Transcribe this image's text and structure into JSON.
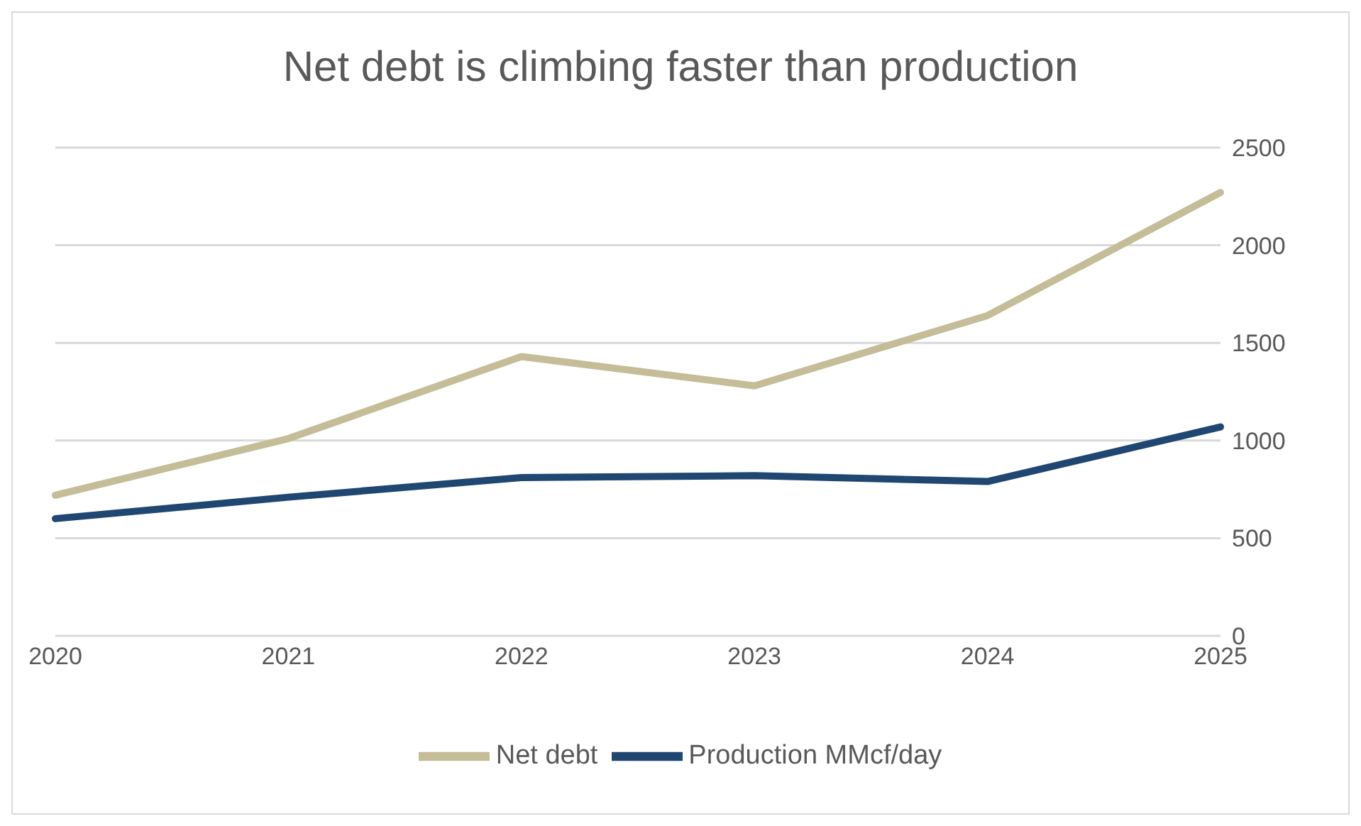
{
  "chart_data": {
    "type": "line",
    "title": "Net debt is climbing faster than production",
    "categories": [
      "2020",
      "2021",
      "2022",
      "2023",
      "2024",
      "2025"
    ],
    "series": [
      {
        "name": "Production MMcf/day",
        "color": "#1f4771",
        "values": [
          600,
          710,
          810,
          820,
          790,
          1070
        ]
      },
      {
        "name": "Net debt",
        "color": "#c4bd97",
        "values": [
          720,
          1010,
          1430,
          1280,
          1640,
          2270
        ]
      }
    ],
    "ylim": [
      0,
      2500
    ],
    "yticks": [
      0,
      500,
      1000,
      1500,
      2000,
      2500
    ],
    "grid": "y",
    "legend": "bottom",
    "marker": "none",
    "line_style": "solid"
  }
}
